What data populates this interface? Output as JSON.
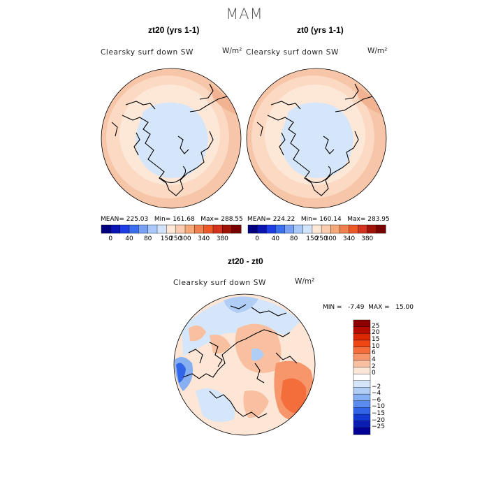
{
  "title": "MAM",
  "panels": [
    {
      "title": "zt20 (yrs 1-1)",
      "variable": "Clearsky surf down SW",
      "units": "W/m²",
      "stats": "MEAN= 225.03   Min= 161.68   Max= 288.55"
    },
    {
      "title": "zt0 (yrs 1-1)",
      "variable": "Clearsky surf down SW",
      "units": "W/m²",
      "stats": "MEAN= 224.22   Min= 160.14   Max= 283.95"
    }
  ],
  "diff_panel": {
    "title": "zt20 - zt0",
    "variable": "Clearsky surf down SW",
    "units": "W/m²",
    "stats": "MIN =   -7.49  MAX =   15.00"
  },
  "abs_colorbar": {
    "tick_labels": [
      "0",
      "40",
      "80",
      "150",
      "250",
      "300",
      "340",
      "380"
    ],
    "colors": [
      "#000080",
      "#0a14b4",
      "#1e3ce6",
      "#3c6ef0",
      "#78a0f5",
      "#a9c8f8",
      "#d2e4fb",
      "#fde8d6",
      "#fbcdb0",
      "#f5a878",
      "#f0804e",
      "#eb5a28",
      "#d2321e",
      "#a01408",
      "#780000"
    ]
  },
  "diff_colorbar": {
    "tick_labels": [
      "25",
      "20",
      "15",
      "10",
      "6",
      "4",
      "2",
      "0",
      "−2",
      "−4",
      "−6",
      "−10",
      "−15",
      "−20",
      "−25"
    ],
    "colors": [
      "#8c0000",
      "#b40a00",
      "#dc2800",
      "#f04614",
      "#f46e3c",
      "#f6966a",
      "#f8c0a0",
      "#fde6d6",
      "#ffffff",
      "#d6e6fa",
      "#b0cdf6",
      "#86b0f2",
      "#5a8cf0",
      "#3264e8",
      "#1438d2",
      "#0a1eb4",
      "#000096"
    ]
  }
}
